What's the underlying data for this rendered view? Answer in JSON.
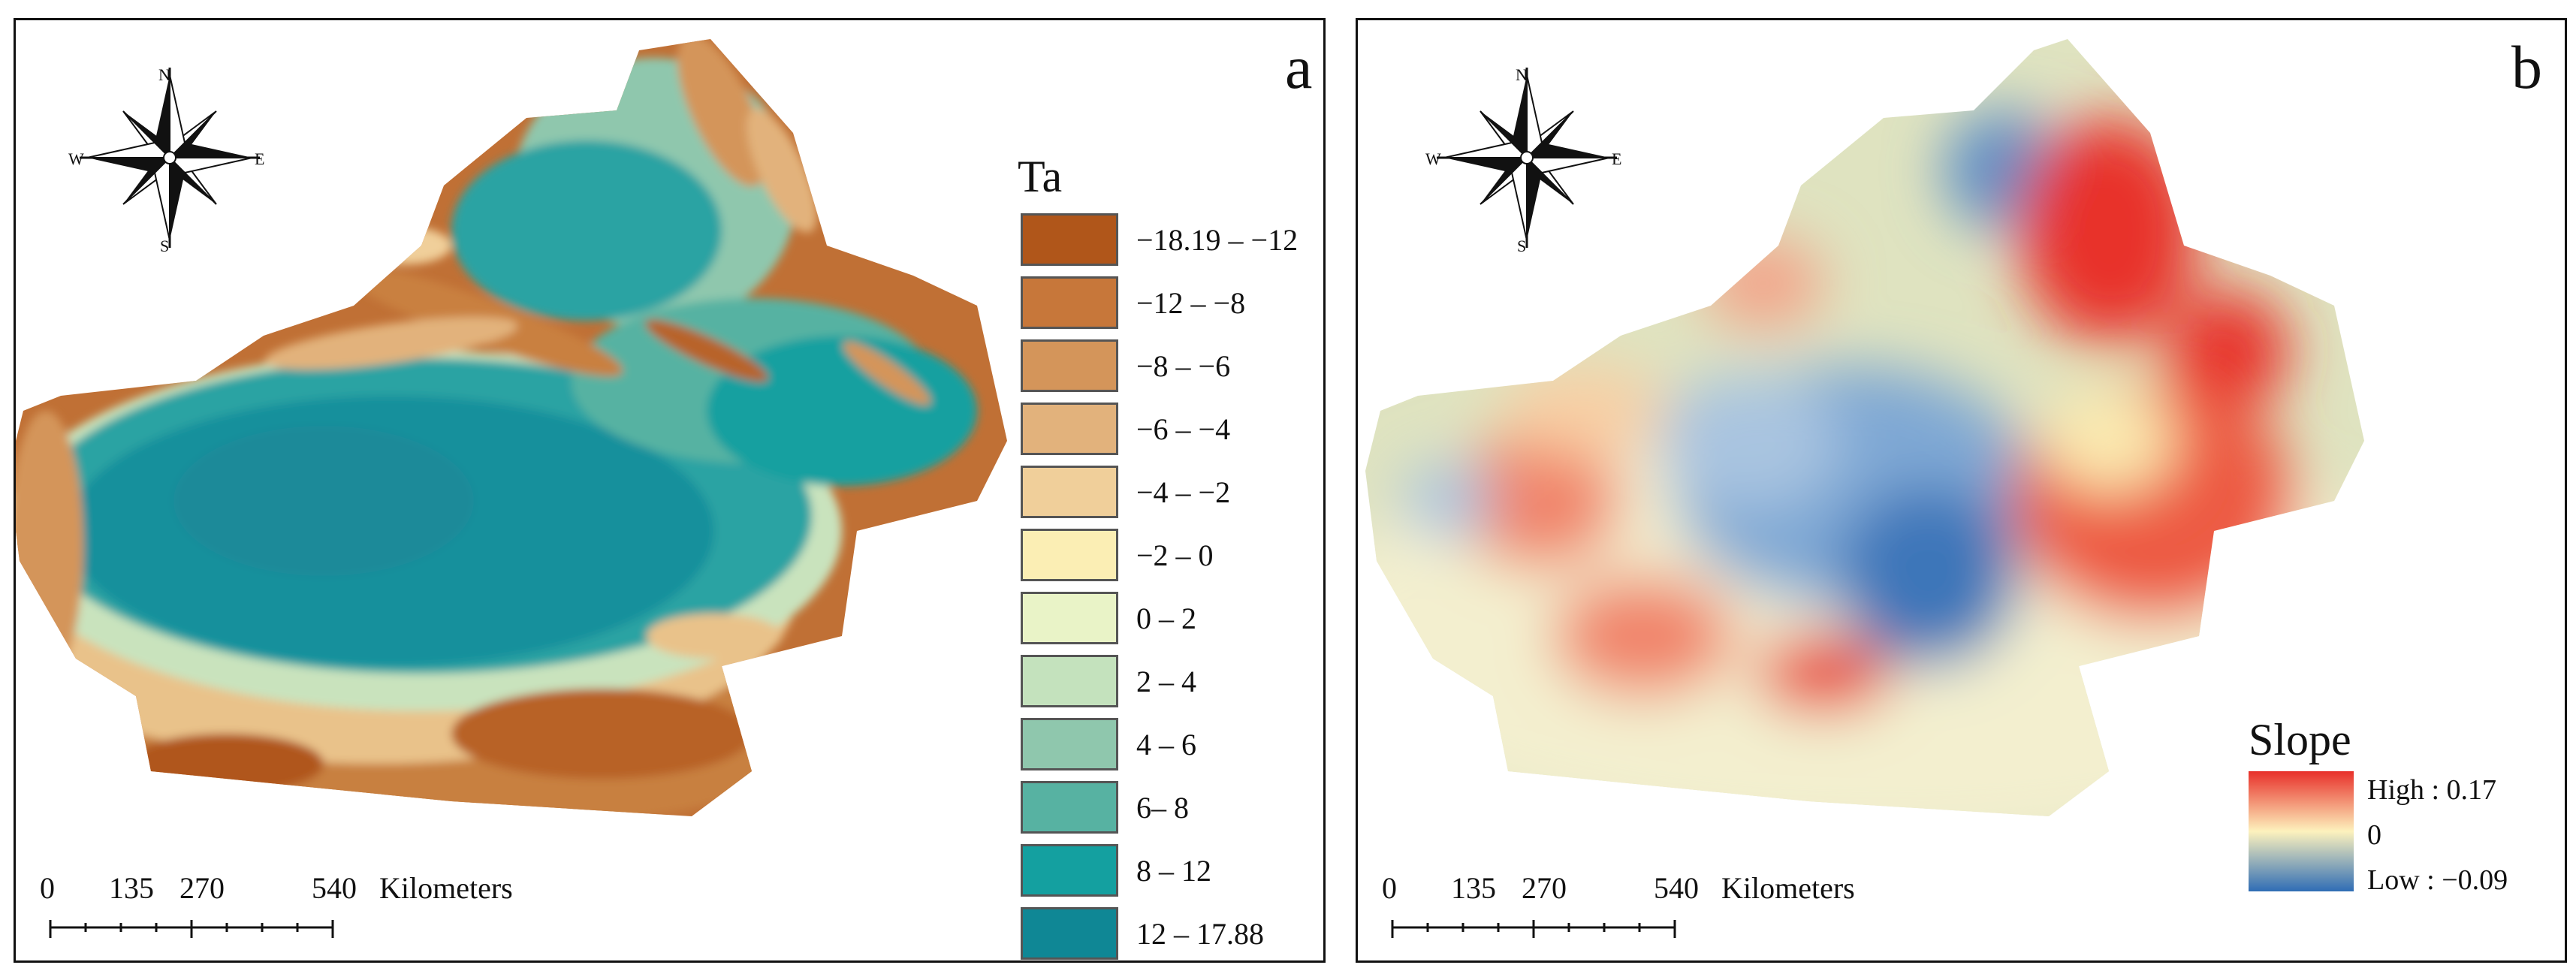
{
  "panel_a": {
    "letter": "a",
    "legend": {
      "title": "Ta",
      "classes": [
        {
          "label": "−18.19 – −12",
          "color": "#b0561a"
        },
        {
          "label": "−12 – −8",
          "color": "#c7773a"
        },
        {
          "label": "−8 – −6",
          "color": "#d4955a"
        },
        {
          "label": "−6 – −4",
          "color": "#e2b27c"
        },
        {
          "label": "−4 – −2",
          "color": "#f0cf9a"
        },
        {
          "label": "−2 – 0",
          "color": "#fbeeb4"
        },
        {
          "label": "0 – 2",
          "color": "#e9f3c7"
        },
        {
          "label": "2 – 4",
          "color": "#c4e2bd"
        },
        {
          "label": "4 – 6",
          "color": "#8fc7ad"
        },
        {
          "label": "6– 8",
          "color": "#57b2a2"
        },
        {
          "label": "8 – 12",
          "color": "#14a0a0"
        },
        {
          "label": "12 – 17.88",
          "color": "#0f8795"
        }
      ]
    },
    "scalebar": {
      "ticks": [
        "0",
        "135",
        "270",
        "540"
      ],
      "unit": "Kilometers"
    }
  },
  "panel_b": {
    "letter": "b",
    "legend": {
      "title": "Slope",
      "high_label": "High : 0.17",
      "mid_label": "0",
      "low_label": "Low : −0.09",
      "colors": {
        "high": "#e8302a",
        "mid": "#fdf2bd",
        "low": "#2f6db5"
      }
    },
    "scalebar": {
      "ticks": [
        "0",
        "135",
        "270",
        "540"
      ],
      "unit": "Kilometers"
    }
  },
  "compass": {
    "north": "N",
    "south": "S",
    "east": "E",
    "west": "W"
  }
}
